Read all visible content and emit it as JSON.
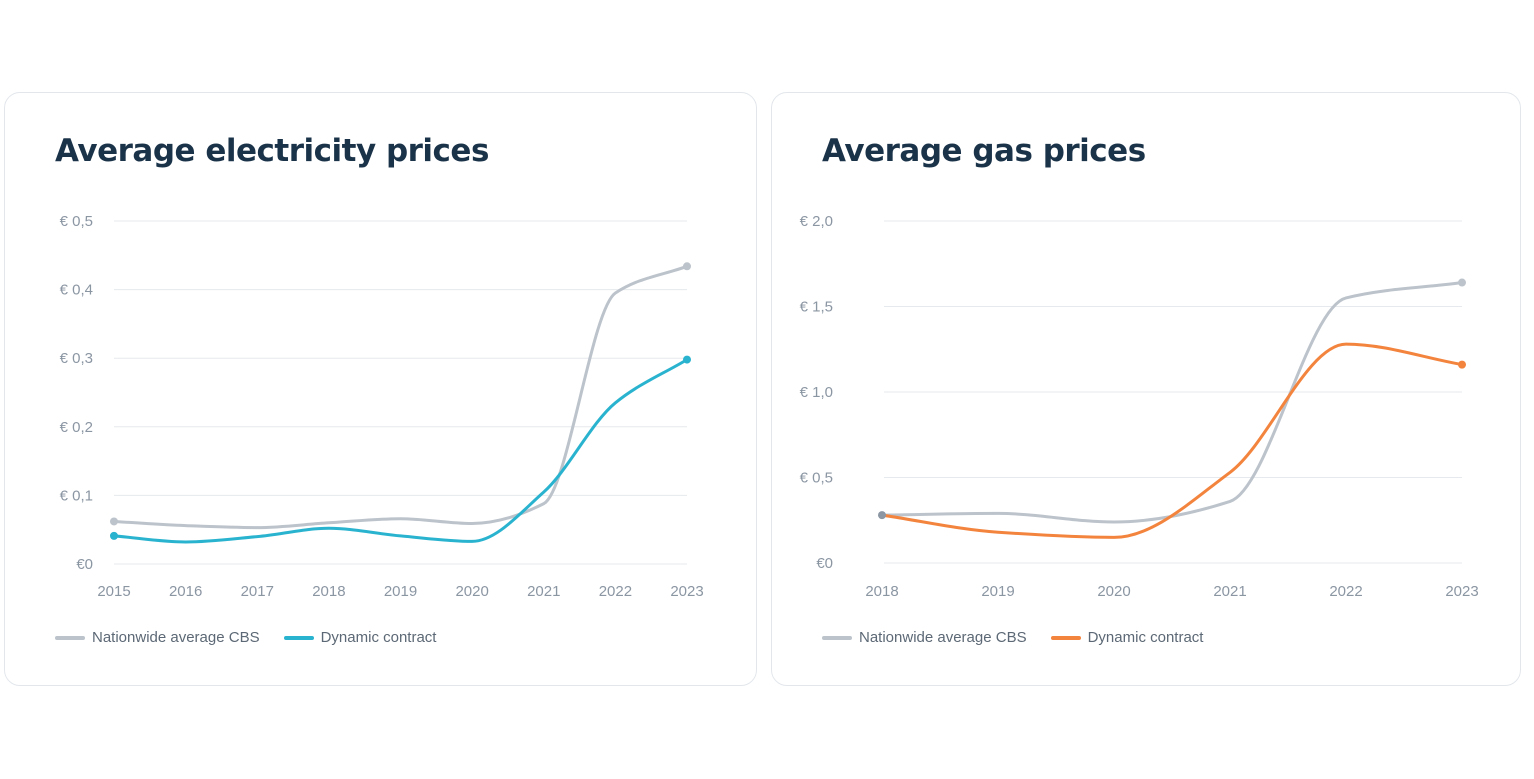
{
  "colors": {
    "nationwide": "#bcc3cb",
    "electricity_dynamic": "#2ab3cf",
    "gas_dynamic": "#f3843e",
    "grid": "#e6e9ed",
    "text": "#1b3349",
    "tick": "#8b96a3"
  },
  "chart_data": [
    {
      "type": "line",
      "title": "Average electricity prices",
      "xlabel": "",
      "ylabel": "",
      "x": [
        "2015",
        "2016",
        "2017",
        "2018",
        "2019",
        "2020",
        "2021",
        "2022",
        "2023"
      ],
      "ylim": [
        0,
        0.5
      ],
      "y_ticks": [
        {
          "value": 0,
          "label": "€0"
        },
        {
          "value": 0.1,
          "label": "€ 0,1"
        },
        {
          "value": 0.2,
          "label": "€ 0,2"
        },
        {
          "value": 0.3,
          "label": "€ 0,3"
        },
        {
          "value": 0.4,
          "label": "€ 0,4"
        },
        {
          "value": 0.5,
          "label": "€ 0,5"
        }
      ],
      "grid": true,
      "legend_position": "bottom-left",
      "series": [
        {
          "name": "Nationwide average CBS",
          "color_key": "nationwide",
          "values": [
            0.062,
            0.056,
            0.053,
            0.06,
            0.066,
            0.059,
            0.088,
            0.395,
            0.434
          ]
        },
        {
          "name": "Dynamic contract",
          "color_key": "electricity_dynamic",
          "values": [
            0.041,
            0.032,
            0.04,
            0.052,
            0.041,
            0.033,
            0.105,
            0.235,
            0.298
          ]
        }
      ]
    },
    {
      "type": "line",
      "title": "Average gas prices",
      "xlabel": "",
      "ylabel": "",
      "x": [
        "2018",
        "2019",
        "2020",
        "2021",
        "2022",
        "2023"
      ],
      "ylim": [
        0,
        2.0
      ],
      "y_ticks": [
        {
          "value": 0,
          "label": "€0"
        },
        {
          "value": 0.5,
          "label": "€ 0,5"
        },
        {
          "value": 1.0,
          "label": "€ 1,0"
        },
        {
          "value": 1.5,
          "label": "€ 1,5"
        },
        {
          "value": 2.0,
          "label": "€ 2,0"
        }
      ],
      "grid": true,
      "legend_position": "bottom-left",
      "series": [
        {
          "name": "Nationwide average CBS",
          "color_key": "nationwide",
          "values": [
            0.28,
            0.29,
            0.24,
            0.36,
            1.55,
            1.64
          ]
        },
        {
          "name": "Dynamic contract",
          "color_key": "gas_dynamic",
          "values": [
            0.28,
            0.18,
            0.15,
            0.53,
            1.28,
            1.16
          ]
        }
      ]
    }
  ]
}
